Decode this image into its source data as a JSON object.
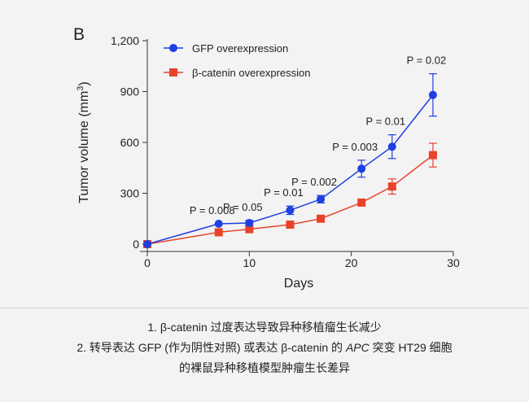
{
  "panel_label": "B",
  "chart_data": {
    "type": "line",
    "title": "",
    "xlabel": "Days",
    "ylabel": "Tumor volume (mm",
    "ylabel_sup": "3",
    "ylabel_close": ")",
    "xlim": [
      0,
      30
    ],
    "ylim": [
      0,
      1200
    ],
    "xticks": [
      0,
      10,
      20,
      30
    ],
    "yticks": [
      0,
      300,
      600,
      900,
      1200
    ],
    "ytick_labels": [
      "0",
      "300",
      "600",
      "900",
      "1,200"
    ],
    "legend_position": "top-left",
    "series": [
      {
        "name": "GFP overexpression",
        "color": "#1f3fe0",
        "marker": "circle",
        "x": [
          0,
          7,
          10,
          14,
          17,
          21,
          24,
          28
        ],
        "y": [
          0,
          120,
          125,
          200,
          265,
          445,
          575,
          880
        ],
        "err": [
          0,
          0,
          15,
          25,
          22,
          50,
          70,
          125
        ]
      },
      {
        "name": "β-catenin overexpression",
        "color": "#e8432a",
        "marker": "square",
        "x": [
          0,
          7,
          10,
          14,
          17,
          21,
          24,
          28
        ],
        "y": [
          0,
          70,
          88,
          115,
          150,
          245,
          340,
          525
        ],
        "err": [
          0,
          0,
          0,
          0,
          0,
          0,
          45,
          70
        ]
      }
    ],
    "annotations": [
      {
        "text": "P = 0.008",
        "x": 7,
        "y": 120
      },
      {
        "text": "P = 0.05",
        "x": 10,
        "y": 125
      },
      {
        "text": "P = 0.01",
        "x": 14,
        "y": 200
      },
      {
        "text": "P = 0.002",
        "x": 17,
        "y": 265
      },
      {
        "text": "P = 0.003",
        "x": 21,
        "y": 445
      },
      {
        "text": "P = 0.01",
        "x": 24,
        "y": 575
      },
      {
        "text": "P = 0.02",
        "x": 28,
        "y": 880
      }
    ]
  },
  "captions": {
    "line1": "1. β-catenin 过度表达导致异种移植瘤生长减少",
    "line2_a": "2. 转导表达 GFP (作为阴性对照) 或表达 β-catenin 的 ",
    "line2_italic": "APC",
    "line2_b": " 突变 HT29 细胞",
    "line3": "的裸鼠异种移植模型肿瘤生长差异"
  }
}
